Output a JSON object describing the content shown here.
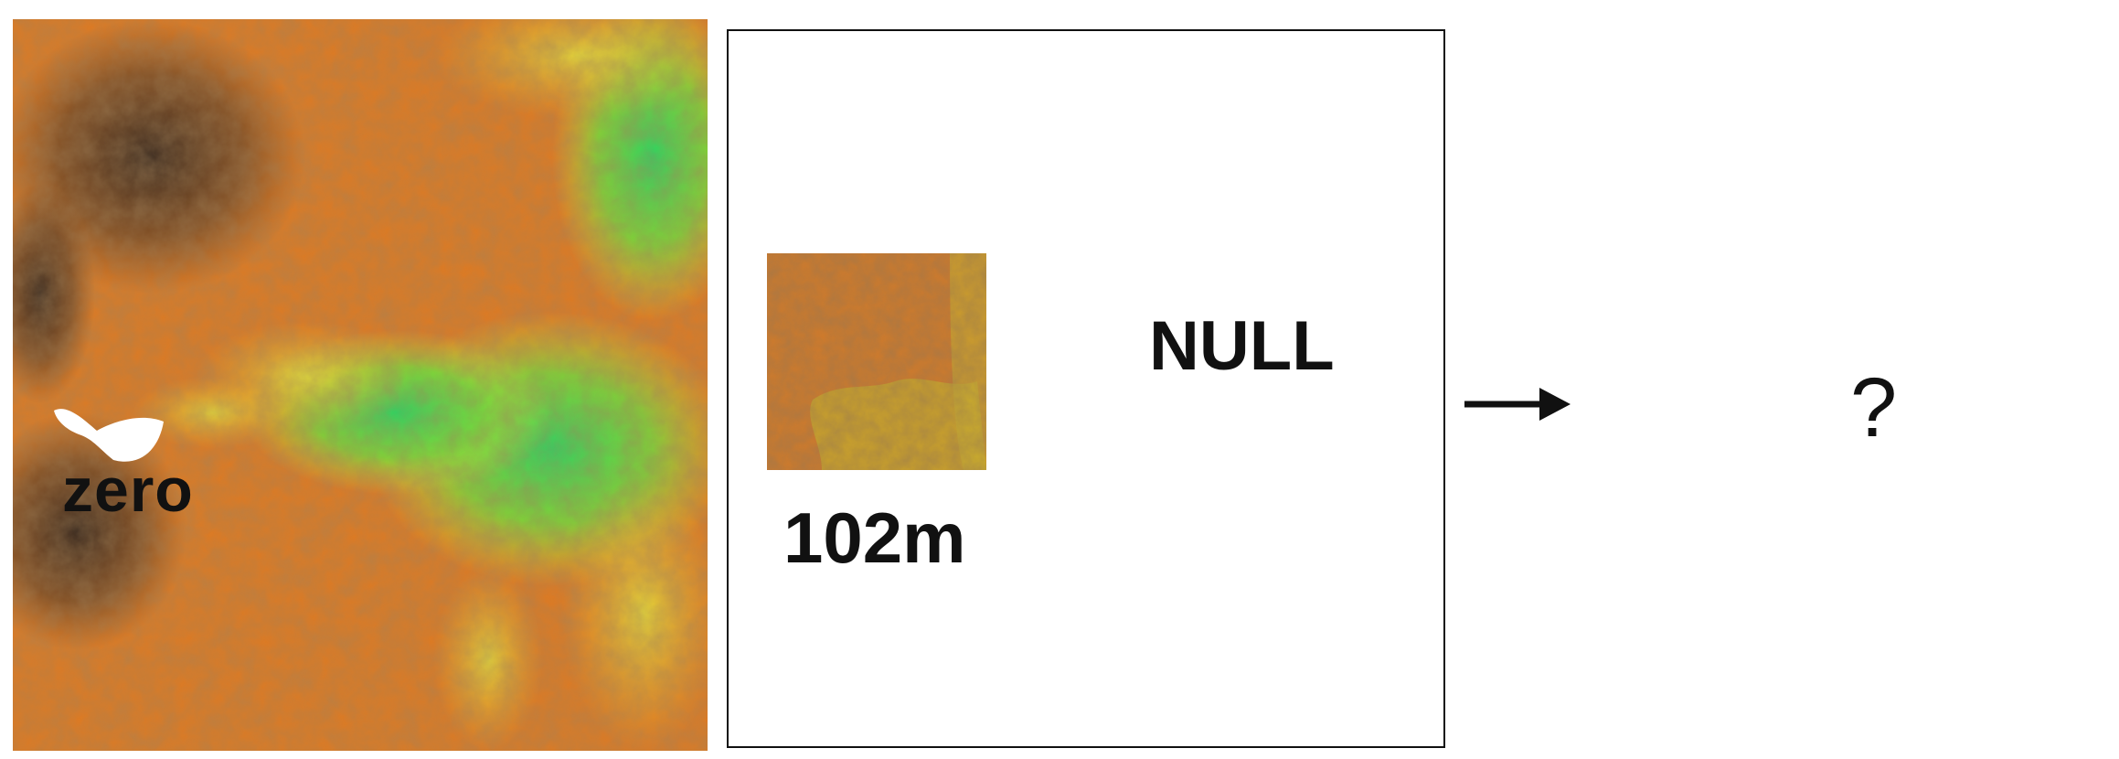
{
  "map_panel": {
    "label": "zero",
    "icon": "elevation-map"
  },
  "frame_panel": {
    "resolution_label": "102m",
    "null_label": "NULL",
    "icon": "elevation-thumbnail"
  },
  "arrow": {
    "icon": "right-arrow-icon"
  },
  "result": {
    "label": "?"
  },
  "colors": {
    "high_elevation": "#3b2a20",
    "mid_elevation": "#e07a1c",
    "low_elevation": "#e8e23a",
    "valley": "#3fd94a",
    "frame": "#111111"
  }
}
